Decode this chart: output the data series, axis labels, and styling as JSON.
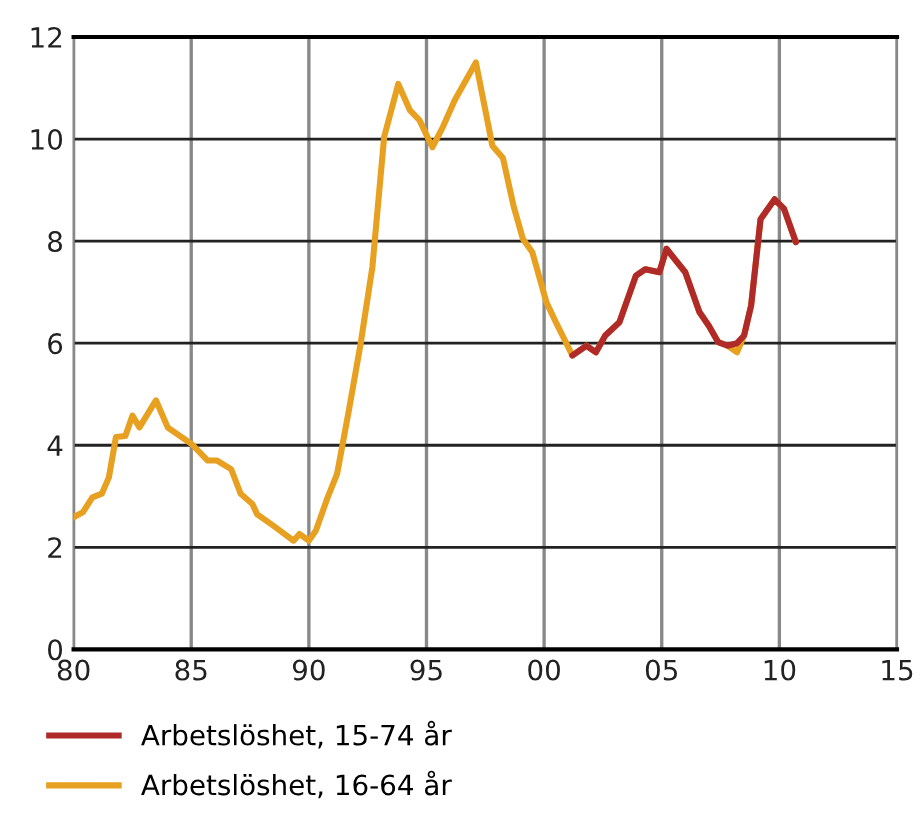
{
  "chart_data": {
    "type": "line",
    "xlim": [
      1980,
      2015
    ],
    "ylim": [
      0,
      12
    ],
    "xticks": [
      {
        "value": 1980,
        "label": "80"
      },
      {
        "value": 1985,
        "label": "85"
      },
      {
        "value": 1990,
        "label": "90"
      },
      {
        "value": 1995,
        "label": "95"
      },
      {
        "value": 2000,
        "label": "00"
      },
      {
        "value": 2005,
        "label": "05"
      },
      {
        "value": 2010,
        "label": "10"
      },
      {
        "value": 2015,
        "label": "15"
      }
    ],
    "yticks": [
      0,
      2,
      4,
      6,
      8,
      10,
      12
    ],
    "grid": true,
    "legend": "bottom",
    "line_style": "solid",
    "marker": "none",
    "series": [
      {
        "name": "Arbetslöshet, 15-74 år",
        "color": "#b02a2a",
        "x": [
          2001.2,
          2001.8,
          2002.2,
          2002.6,
          2003.2,
          2003.9,
          2004.3,
          2004.9,
          2005.2,
          2006.0,
          2006.6,
          2007.0,
          2007.4,
          2007.8,
          2008.2,
          2008.5,
          2008.8,
          2009.2,
          2009.8,
          2010.2,
          2010.7
        ],
        "values": [
          5.76,
          5.95,
          5.82,
          6.15,
          6.41,
          7.32,
          7.45,
          7.39,
          7.85,
          7.39,
          6.61,
          6.34,
          6.02,
          5.95,
          6.0,
          6.15,
          6.74,
          8.43,
          8.82,
          8.63,
          7.98
        ]
      },
      {
        "name": "Arbetslöshet, 16-64 år",
        "color": "#e8a020",
        "x": [
          1980.0,
          1980.4,
          1980.8,
          1981.2,
          1981.5,
          1981.8,
          1982.2,
          1982.5,
          1982.8,
          1983.5,
          1984.0,
          1985.0,
          1985.7,
          1986.1,
          1986.7,
          1987.1,
          1987.6,
          1987.8,
          1988.5,
          1989.35,
          1989.6,
          1990.0,
          1990.3,
          1990.8,
          1991.2,
          1991.7,
          1992.2,
          1992.7,
          1993.2,
          1993.8,
          1994.3,
          1994.7,
          1995.25,
          1995.7,
          1996.2,
          1997.1,
          1997.8,
          1998.25,
          1998.7,
          1999.1,
          1999.5,
          2000.1,
          2000.5,
          2001.2,
          2001.8,
          2002.2,
          2002.6,
          2003.2,
          2003.9,
          2004.3,
          2004.9,
          2005.2,
          2006.0,
          2006.6,
          2007.0,
          2007.4,
          2007.8,
          2008.2,
          2008.5,
          2008.8,
          2009.2,
          2009.8,
          2010.2,
          2010.7
        ],
        "values": [
          2.59,
          2.69,
          2.98,
          3.05,
          3.37,
          4.16,
          4.18,
          4.58,
          4.35,
          4.88,
          4.35,
          4.03,
          3.7,
          3.7,
          3.53,
          3.05,
          2.85,
          2.65,
          2.42,
          2.13,
          2.26,
          2.13,
          2.33,
          2.98,
          3.44,
          4.68,
          5.99,
          7.49,
          10.04,
          11.08,
          10.56,
          10.37,
          9.84,
          10.24,
          10.76,
          11.5,
          9.87,
          9.63,
          8.69,
          8.04,
          7.78,
          6.8,
          6.41,
          5.76,
          5.95,
          5.82,
          6.15,
          6.41,
          7.32,
          7.45,
          7.39,
          7.85,
          7.39,
          6.61,
          6.34,
          6.02,
          5.95,
          5.82,
          6.15,
          6.74,
          8.43,
          8.82,
          8.63,
          7.98
        ]
      }
    ]
  }
}
